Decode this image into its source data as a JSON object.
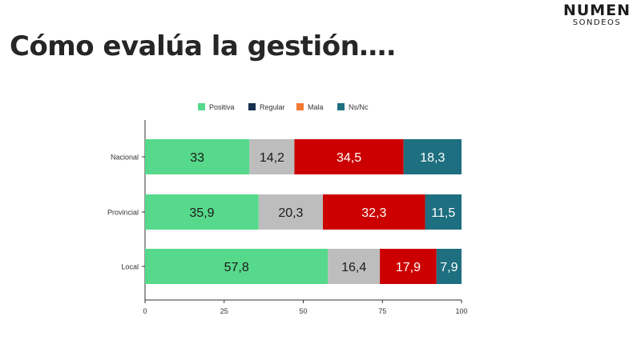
{
  "page": {
    "title": "Cómo evalúa la gestión….",
    "brand_name": "NUMEN",
    "brand_sub": "SONDEOS"
  },
  "colors": {
    "Positiva": "#57d98b",
    "Regular": "#bdbdbd",
    "Mala": "#cc0000",
    "Ns/Nc": "#1e6f80",
    "legend_Regular": "#16314f",
    "legend_Mala": "#f07a34"
  },
  "chart_data": {
    "type": "bar",
    "orientation": "horizontal",
    "stacked": true,
    "categories": [
      "Nacional",
      "Provincial",
      "Local"
    ],
    "series": [
      {
        "name": "Positiva",
        "values": [
          33,
          35.9,
          57.8
        ],
        "labels": [
          "33",
          "35,9",
          "57,8"
        ]
      },
      {
        "name": "Regular",
        "values": [
          14.2,
          20.3,
          16.4
        ],
        "labels": [
          "14,2",
          "20,3",
          "16,4"
        ]
      },
      {
        "name": "Mala",
        "values": [
          34.5,
          32.3,
          17.9
        ],
        "labels": [
          "34,5",
          "32,3",
          "17,9"
        ]
      },
      {
        "name": "Ns/Nc",
        "values": [
          18.3,
          11.5,
          7.9
        ],
        "labels": [
          "18,3",
          "11,5",
          "7,9"
        ]
      }
    ],
    "xlim": [
      0,
      100
    ],
    "xticks": [
      0,
      25,
      50,
      75,
      100
    ],
    "legend": "top",
    "grid": false
  }
}
